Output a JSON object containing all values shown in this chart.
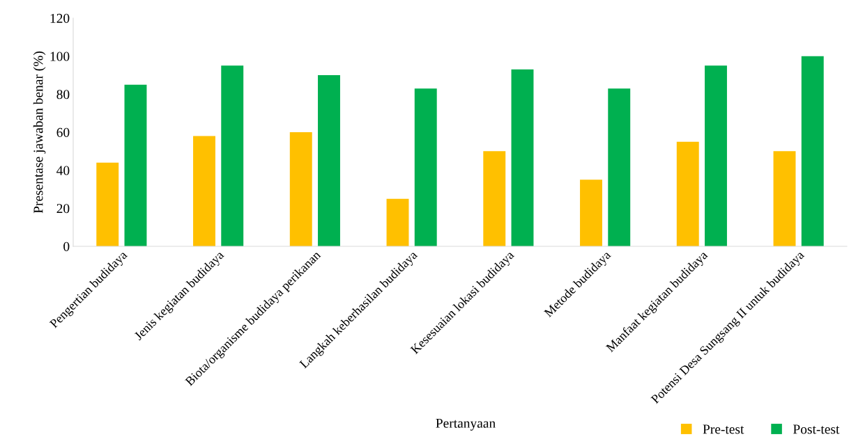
{
  "chart_data": {
    "type": "bar",
    "categories": [
      "Pengertian budidaya",
      "Jenis kegiatan budidaya",
      "Biota/organisme budidaya perikanan",
      "Langkah keberhasilan budidaya",
      "Kesesuaian lokasi budidaya",
      "Metode budidaya",
      "Manfaat kegiatan budidaya",
      "Potensi Desa Sungsang II untuk budidaya"
    ],
    "series": [
      {
        "name": "Pre-test",
        "color": "#ffc000",
        "values": [
          44,
          58,
          60,
          25,
          50,
          35,
          55,
          50
        ]
      },
      {
        "name": "Post-test",
        "color": "#00b050",
        "values": [
          85,
          95,
          90,
          83,
          93,
          83,
          95,
          100
        ]
      }
    ],
    "xlabel": "Pertanyaan",
    "ylabel": "Presentase jawaban benar (%)",
    "ylim": [
      0,
      120
    ],
    "yticks": [
      0,
      20,
      40,
      60,
      80,
      100,
      120
    ],
    "legend": "bottom right"
  }
}
